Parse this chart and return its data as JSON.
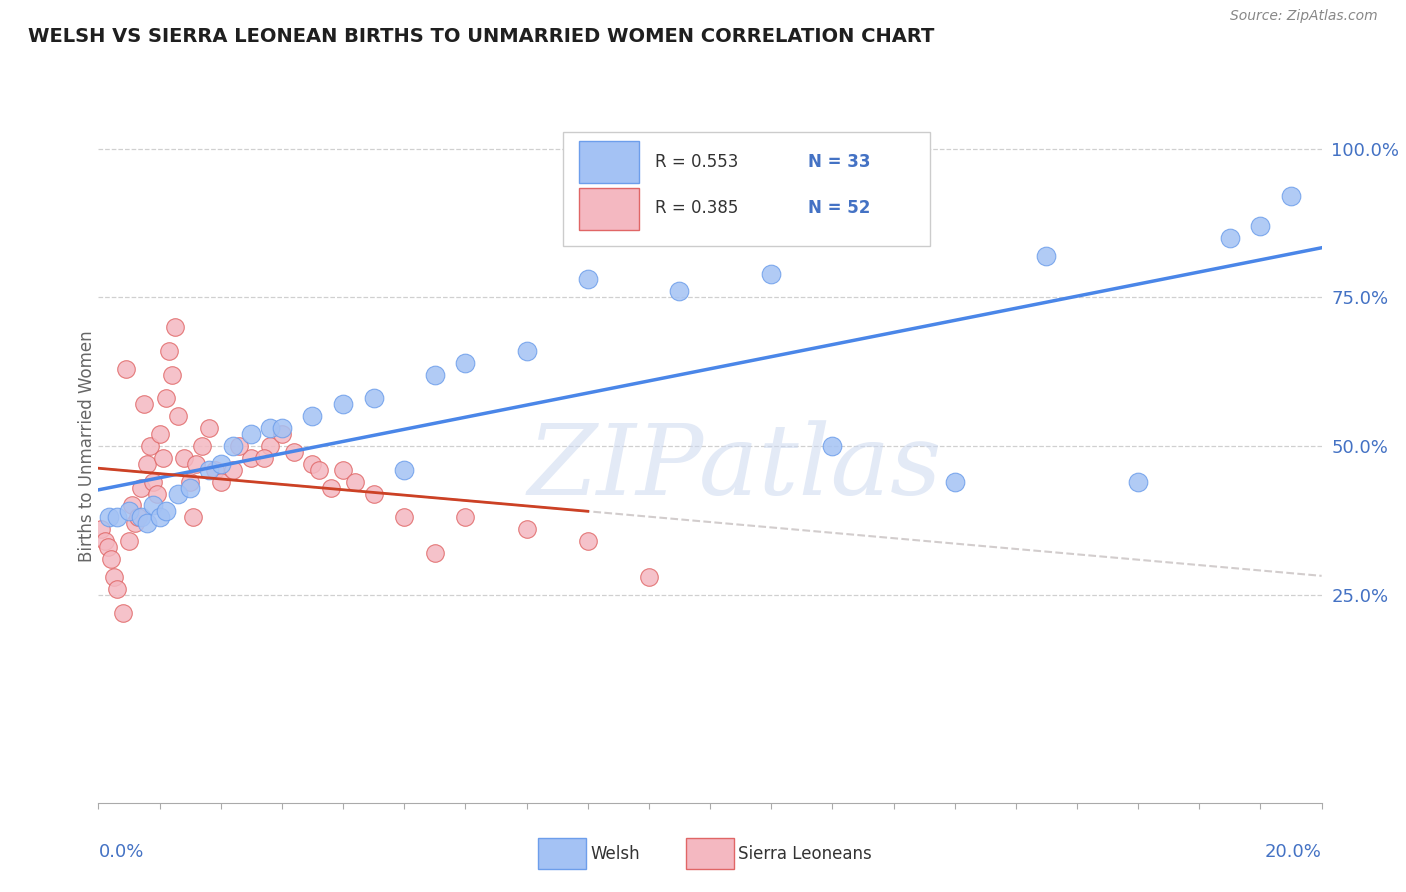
{
  "title": "WELSH VS SIERRA LEONEAN BIRTHS TO UNMARRIED WOMEN CORRELATION CHART",
  "source": "Source: ZipAtlas.com",
  "ylabel": "Births to Unmarried Women",
  "watermark": "ZIPatlas",
  "legend_r_blue": "R = 0.553",
  "legend_n_blue": "N = 33",
  "legend_r_pink": "R = 0.385",
  "legend_n_pink": "N = 52",
  "legend_label_blue": "Welsh",
  "legend_label_pink": "Sierra Leoneans",
  "blue_fill": "#a4c2f4",
  "pink_fill": "#f4b8c1",
  "blue_edge": "#6d9eeb",
  "pink_edge": "#e06666",
  "blue_line": "#4a86e8",
  "pink_line": "#cc4125",
  "gray_dash": "#c0b8b8",
  "text_color": "#4472c4",
  "title_color": "#1f1f1f",
  "ylabel_color": "#666666",
  "grid_color": "#d0d0d0",
  "welsh_x": [
    0.18,
    0.3,
    0.5,
    0.7,
    0.8,
    0.9,
    1.0,
    1.1,
    1.3,
    1.5,
    1.8,
    2.0,
    2.2,
    2.5,
    2.8,
    3.0,
    3.5,
    4.0,
    4.5,
    5.0,
    5.5,
    6.0,
    7.0,
    8.0,
    9.5,
    11.0,
    12.0,
    14.0,
    15.5,
    17.0,
    18.5,
    19.0,
    19.5
  ],
  "welsh_y": [
    0.38,
    0.38,
    0.39,
    0.38,
    0.37,
    0.4,
    0.38,
    0.39,
    0.42,
    0.43,
    0.46,
    0.47,
    0.5,
    0.52,
    0.53,
    0.53,
    0.55,
    0.57,
    0.58,
    0.46,
    0.62,
    0.64,
    0.66,
    0.78,
    0.76,
    0.79,
    0.5,
    0.44,
    0.82,
    0.44,
    0.85,
    0.87,
    0.92
  ],
  "welsh_size": [
    200,
    200,
    300,
    200,
    200,
    200,
    300,
    200,
    200,
    200,
    200,
    200,
    200,
    200,
    200,
    200,
    200,
    200,
    200,
    200,
    200,
    200,
    200,
    200,
    200,
    200,
    200,
    200,
    200,
    200,
    200,
    200,
    200
  ],
  "sierra_x": [
    0.05,
    0.1,
    0.15,
    0.2,
    0.25,
    0.3,
    0.4,
    0.5,
    0.55,
    0.6,
    0.65,
    0.7,
    0.8,
    0.85,
    0.9,
    0.95,
    1.0,
    1.05,
    1.1,
    1.2,
    1.3,
    1.4,
    1.5,
    1.6,
    1.7,
    1.8,
    1.9,
    2.0,
    2.2,
    2.5,
    2.8,
    3.0,
    3.2,
    3.5,
    4.0,
    4.5,
    5.0,
    5.5,
    6.0,
    7.0,
    8.0,
    9.0,
    3.8,
    2.3,
    1.15,
    1.25,
    0.45,
    0.75,
    1.55,
    4.2,
    3.6,
    2.7
  ],
  "sierra_y": [
    0.36,
    0.34,
    0.33,
    0.31,
    0.28,
    0.26,
    0.22,
    0.34,
    0.4,
    0.37,
    0.38,
    0.43,
    0.47,
    0.5,
    0.44,
    0.42,
    0.52,
    0.48,
    0.58,
    0.62,
    0.55,
    0.48,
    0.44,
    0.47,
    0.5,
    0.53,
    0.46,
    0.44,
    0.46,
    0.48,
    0.5,
    0.52,
    0.49,
    0.47,
    0.46,
    0.42,
    0.38,
    0.32,
    0.38,
    0.36,
    0.34,
    0.28,
    0.43,
    0.5,
    0.66,
    0.7,
    0.63,
    0.57,
    0.38,
    0.44,
    0.46,
    0.48
  ],
  "sierra_size": [
    200,
    200,
    200,
    200,
    200,
    200,
    200,
    200,
    200,
    200,
    200,
    200,
    200,
    200,
    200,
    200,
    200,
    200,
    200,
    200,
    200,
    200,
    200,
    200,
    200,
    200,
    200,
    200,
    200,
    200,
    200,
    200,
    200,
    200,
    200,
    200,
    200,
    200,
    200,
    200,
    200,
    200,
    200,
    200,
    200,
    200,
    200,
    200,
    200,
    200,
    200,
    200
  ],
  "xlim": [
    0.0,
    20.0
  ],
  "ylim": [
    -0.1,
    1.1
  ],
  "y_ticks": [
    0.25,
    0.5,
    0.75,
    1.0
  ],
  "y_labels": [
    "25.0%",
    "50.0%",
    "75.0%",
    "100.0%"
  ]
}
